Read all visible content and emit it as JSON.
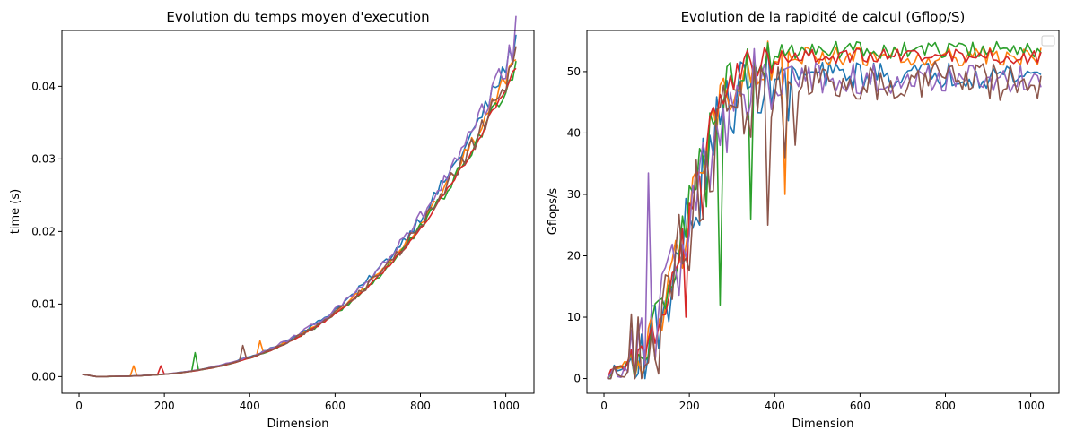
{
  "chart_data": [
    {
      "type": "line",
      "title": "Evolution du temps moyen d'execution",
      "xlabel": "Dimension",
      "ylabel": "time (s)",
      "xlim": [
        -40,
        1066
      ],
      "ylim": [
        -0.0023,
        0.0477
      ],
      "xticks": [
        0,
        200,
        400,
        600,
        800,
        1000
      ],
      "xtick_labels": [
        "0",
        "200",
        "400",
        "600",
        "800",
        "1000"
      ],
      "yticks": [
        0.0,
        0.01,
        0.02,
        0.03,
        0.04
      ],
      "ytick_labels": [
        "0.00",
        "0.01",
        "0.02",
        "0.03",
        "0.04"
      ],
      "x_range": [
        8,
        1024
      ],
      "x_step": 8,
      "curve_model": "t = 4e-11 * n^3",
      "series": [
        {
          "color": "#1f77b4",
          "scale": 1.07,
          "noise": 0.035,
          "spikes": [
            [
              856,
              0.0003
            ]
          ]
        },
        {
          "color": "#ff7f0e",
          "scale": 1.03,
          "noise": 0.03,
          "spikes": [
            [
              128,
              0.0014
            ],
            [
              424,
              0.0018
            ]
          ]
        },
        {
          "color": "#2ca02c",
          "scale": 1.0,
          "noise": 0.03,
          "spikes": [
            [
              272,
              0.0025
            ]
          ]
        },
        {
          "color": "#d62728",
          "scale": 1.0,
          "noise": 0.015,
          "spikes": [
            [
              192,
              0.0012
            ]
          ]
        },
        {
          "color": "#9467bd",
          "scale": 1.07,
          "noise": 0.045,
          "spikes": [
            [
              1024,
              0.0035
            ]
          ]
        },
        {
          "color": "#8c564b",
          "scale": 1.02,
          "noise": 0.04,
          "spikes": [
            [
              384,
              0.002
            ]
          ]
        }
      ]
    },
    {
      "type": "line",
      "title": "Evolution de la rapidité de calcul (Gflop/S)",
      "xlabel": "Dimension",
      "ylabel": "Gflops/s",
      "xlim": [
        -40,
        1066
      ],
      "ylim": [
        -2.4,
        56.7
      ],
      "xticks": [
        0,
        200,
        400,
        600,
        800,
        1000
      ],
      "xtick_labels": [
        "0",
        "200",
        "400",
        "600",
        "800",
        "1000"
      ],
      "yticks": [
        0,
        10,
        20,
        30,
        40,
        50
      ],
      "ytick_labels": [
        "0",
        "10",
        "20",
        "30",
        "40",
        "50"
      ],
      "legend": "upper-right (empty)",
      "x_range": [
        8,
        1024
      ],
      "x_step": 8,
      "series": [
        {
          "color": "#1f77b4",
          "plateau": 49.5,
          "noise": 2.2,
          "dips": [
            [
              224,
              25
            ],
            [
              432,
              42
            ]
          ]
        },
        {
          "color": "#ff7f0e",
          "plateau": 52.5,
          "noise": 1.6,
          "dips": [
            [
              120,
              3
            ],
            [
              184,
              18
            ],
            [
              424,
              30
            ]
          ]
        },
        {
          "color": "#2ca02c",
          "plateau": 53.5,
          "noise": 1.4,
          "dips": [
            [
              272,
              12
            ],
            [
              240,
              28
            ],
            [
              344,
              26
            ]
          ]
        },
        {
          "color": "#d62728",
          "plateau": 52.5,
          "noise": 1.2,
          "dips": [
            [
              192,
              10
            ],
            [
              232,
              26
            ]
          ]
        },
        {
          "color": "#9467bd",
          "plateau": 49.0,
          "noise": 2.6,
          "dips": [
            [
              104,
              33.5
            ]
          ]
        },
        {
          "color": "#8c564b",
          "plateau": 48.5,
          "noise": 3.2,
          "dips": [
            [
              384,
              25
            ],
            [
              424,
              36
            ],
            [
              448,
              38
            ]
          ]
        }
      ]
    }
  ]
}
